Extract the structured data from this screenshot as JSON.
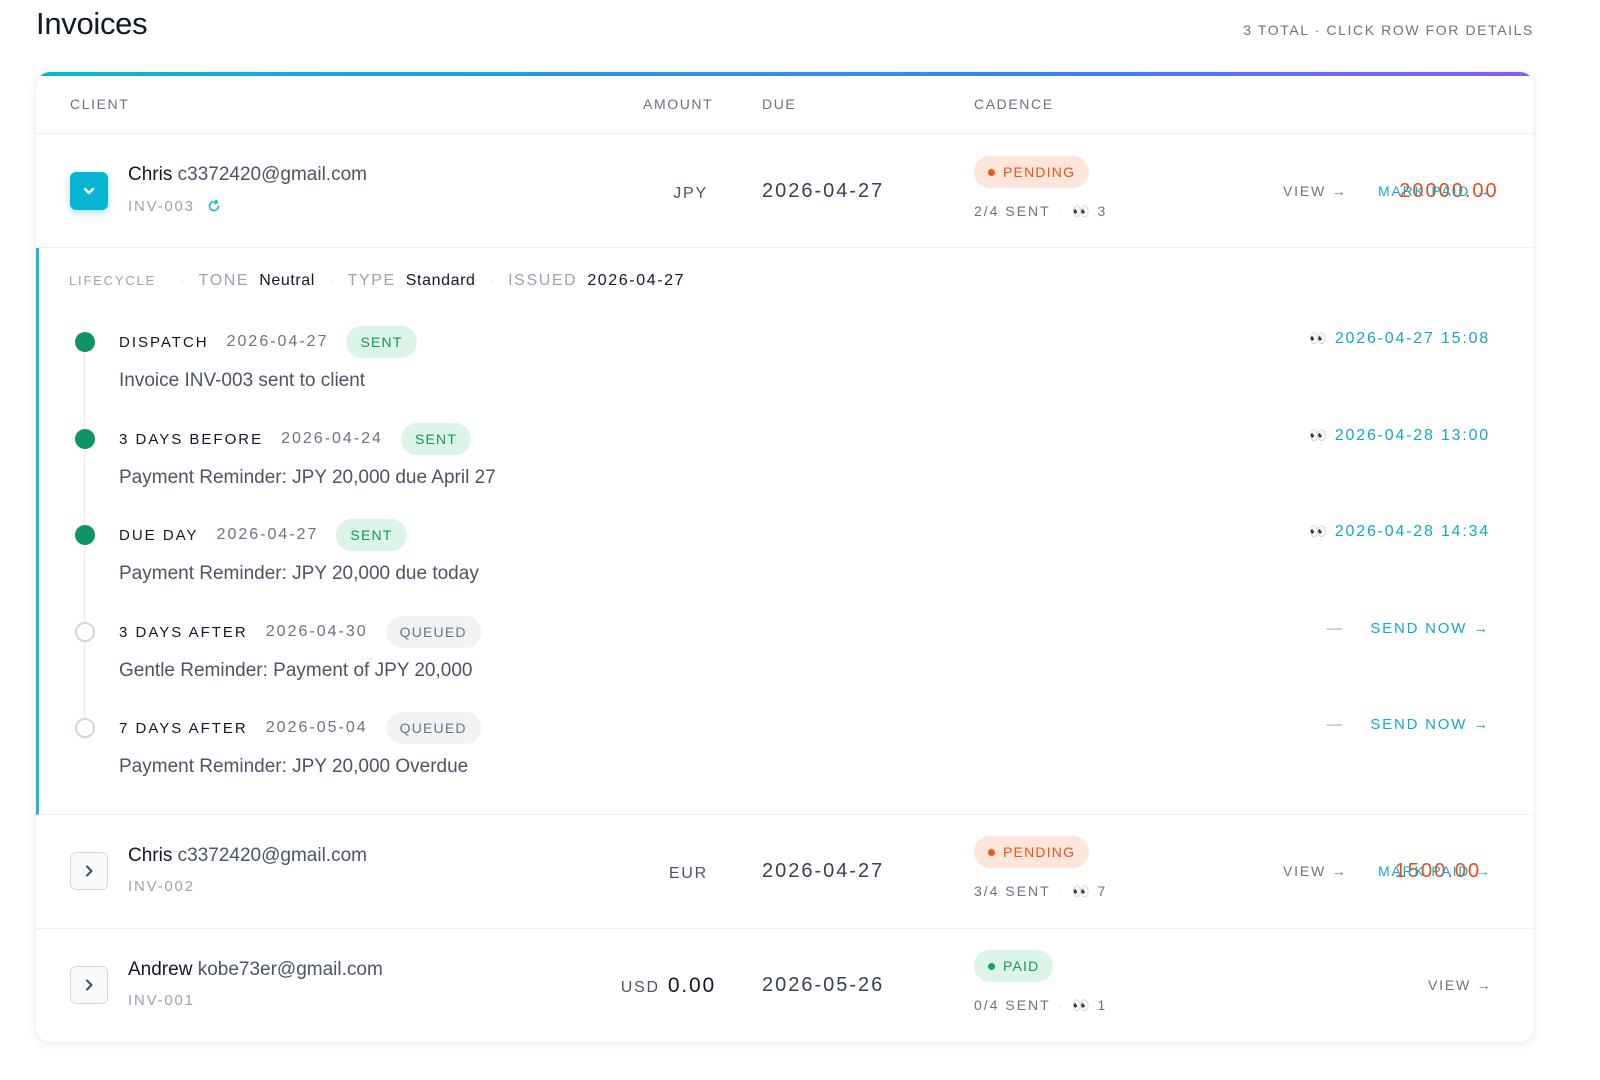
{
  "page": {
    "title": "Invoices",
    "meta": "3 TOTAL · CLICK ROW FOR DETAILS"
  },
  "colors": {
    "accent": "#06b6d4",
    "due_amount": "#ea4b1e",
    "pending": "#e2561f",
    "paid": "#109a64"
  },
  "table": {
    "headers": {
      "client": "CLIENT",
      "amount": "AMOUNT",
      "due": "DUE",
      "cadence": "CADENCE"
    },
    "rows": [
      {
        "expanded": true,
        "toggle_icon": "chevron-down-icon",
        "client_name": "Chris",
        "client_email": "c3372420@gmail.com",
        "invoice_id": "INV-003",
        "id_icon": "refresh-icon",
        "currency": "JPY",
        "amount": "20000.00",
        "due": "2026-04-27",
        "status": "PENDING",
        "sent": "2/4 SENT",
        "opens_icon": "eyes-icon",
        "opens": "3",
        "actions": {
          "view": "VIEW →",
          "mark_paid": "MARK PAID →"
        }
      },
      {
        "expanded": false,
        "toggle_icon": "chevron-right-icon",
        "client_name": "Chris",
        "client_email": "c3372420@gmail.com",
        "invoice_id": "INV-002",
        "currency": "EUR",
        "amount": "1500.00",
        "due": "2026-04-27",
        "status": "PENDING",
        "sent": "3/4 SENT",
        "opens_icon": "eyes-icon",
        "opens": "7",
        "actions": {
          "view": "VIEW →",
          "mark_paid": "MARK PAID →"
        }
      },
      {
        "expanded": false,
        "toggle_icon": "chevron-right-icon",
        "client_name": "Andrew",
        "client_email": "kobe73er@gmail.com",
        "invoice_id": "INV-001",
        "currency": "USD",
        "amount": "0.00",
        "due": "2026-05-26",
        "status": "PAID",
        "sent": "0/4 SENT",
        "opens_icon": "eyes-icon",
        "opens": "1",
        "actions": {
          "view": "VIEW →"
        }
      }
    ]
  },
  "detail": {
    "lifecycle_label": "LIFECYCLE",
    "tone_label": "TONE",
    "tone": "Neutral",
    "type_label": "TYPE",
    "type": "Standard",
    "issued_label": "ISSUED",
    "issued": "2026-04-27",
    "steps": [
      {
        "label": "DISPATCH",
        "date": "2026-04-27",
        "status": "SENT",
        "desc": "Invoice INV-003 sent to client",
        "opened": "2026-04-27 15:08"
      },
      {
        "label": "3 DAYS BEFORE",
        "date": "2026-04-24",
        "status": "SENT",
        "desc": "Payment Reminder: JPY 20,000 due April 27",
        "opened": "2026-04-28 13:00"
      },
      {
        "label": "DUE DAY",
        "date": "2026-04-27",
        "status": "SENT",
        "desc": "Payment Reminder: JPY 20,000 due today",
        "opened": "2026-04-28 14:34"
      },
      {
        "label": "3 DAYS AFTER",
        "date": "2026-04-30",
        "status": "QUEUED",
        "desc": "Gentle Reminder: Payment of JPY 20,000",
        "placeholder": "—",
        "action": "SEND NOW →"
      },
      {
        "label": "7 DAYS AFTER",
        "date": "2026-05-04",
        "status": "QUEUED",
        "desc": "Payment Reminder: JPY 20,000 Overdue",
        "placeholder": "—",
        "action": "SEND NOW →"
      }
    ]
  }
}
